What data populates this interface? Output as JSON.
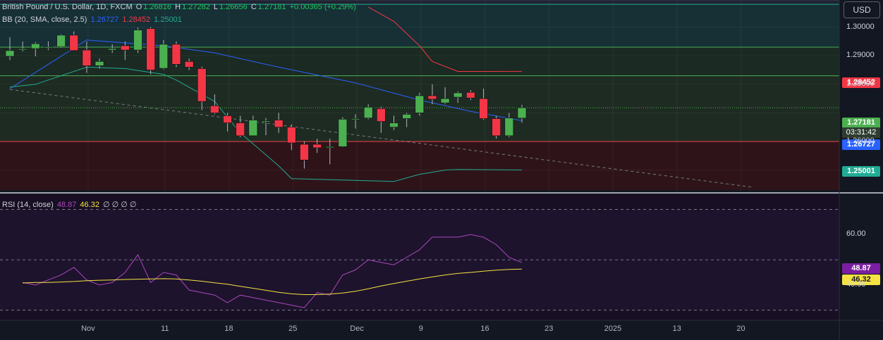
{
  "header": {
    "symbol": "British Pound / U.S. Dollar, 1D, FXCM",
    "o_label": "O",
    "o": "1.26816",
    "h_label": "H",
    "h": "1.27282",
    "l_label": "L",
    "l": "1.26656",
    "c_label": "C",
    "c": "1.27181",
    "change": "+0.00365 (+0.29%)"
  },
  "bb_legend": {
    "label": "BB (20, SMA, close, 2.5)",
    "basis": "1.26727",
    "upper": "1.28452",
    "lower": "1.25001"
  },
  "rsi_legend": {
    "label": "RSI (14, close)",
    "rsi": "48.87",
    "ma": "46.32",
    "extra": "∅ ∅ ∅ ∅"
  },
  "currency_button": "USD",
  "price_tags": {
    "upper": "1.28452",
    "last": "1.27181",
    "countdown": "03:31:42",
    "basis": "1.26727",
    "lower": "1.25001",
    "rsi": "48.87",
    "rsi_ma": "46.32"
  },
  "colors": {
    "up": "#4caf50",
    "down": "#f23645",
    "basis": "#2962ff",
    "upper": "#f23645",
    "lower": "#22ab94",
    "rsi": "#ab47bc",
    "rsi_ma": "#f5e342"
  },
  "chart_data": [
    {
      "type": "candlestick",
      "title": "British Pound / U.S. Dollar, 1D, FXCM",
      "y_axis": {
        "ticks": [
          "1.30000",
          "1.29000",
          "1.28000",
          "1.26000"
        ],
        "range": [
          1.2425,
          1.3095
        ]
      },
      "x_axis": {
        "ticks": [
          "Nov",
          "11",
          "18",
          "25",
          "Dec",
          "9",
          "16",
          "23",
          "2025",
          "13",
          "20"
        ]
      },
      "candles": [
        {
          "o": 1.2898,
          "h": 1.2965,
          "l": 1.2885,
          "c": 1.2918
        },
        {
          "o": 1.2924,
          "h": 1.295,
          "l": 1.2915,
          "c": 1.2924
        },
        {
          "o": 1.2925,
          "h": 1.2948,
          "l": 1.2898,
          "c": 1.2942
        },
        {
          "o": 1.2928,
          "h": 1.295,
          "l": 1.292,
          "c": 1.293
        },
        {
          "o": 1.2932,
          "h": 1.2975,
          "l": 1.2928,
          "c": 1.2972
        },
        {
          "o": 1.2972,
          "h": 1.2985,
          "l": 1.2922,
          "c": 1.2918
        },
        {
          "o": 1.292,
          "h": 1.295,
          "l": 1.284,
          "c": 1.2865
        },
        {
          "o": 1.2865,
          "h": 1.289,
          "l": 1.2855,
          "c": 1.288
        },
        {
          "o": 1.292,
          "h": 1.294,
          "l": 1.291,
          "c": 1.2925
        },
        {
          "o": 1.2935,
          "h": 1.295,
          "l": 1.2885,
          "c": 1.292
        },
        {
          "o": 1.292,
          "h": 1.2998,
          "l": 1.291,
          "c": 1.299
        },
        {
          "o": 1.2995,
          "h": 1.3,
          "l": 1.2835,
          "c": 1.285
        },
        {
          "o": 1.2856,
          "h": 1.2955,
          "l": 1.2852,
          "c": 1.294
        },
        {
          "o": 1.294,
          "h": 1.295,
          "l": 1.286,
          "c": 1.287
        },
        {
          "o": 1.288,
          "h": 1.289,
          "l": 1.285,
          "c": 1.286
        },
        {
          "o": 1.2855,
          "h": 1.2862,
          "l": 1.271,
          "c": 1.274
        },
        {
          "o": 1.2725,
          "h": 1.2765,
          "l": 1.2695,
          "c": 1.27
        },
        {
          "o": 1.269,
          "h": 1.27,
          "l": 1.2635,
          "c": 1.2665
        },
        {
          "o": 1.2665,
          "h": 1.269,
          "l": 1.2615,
          "c": 1.262
        },
        {
          "o": 1.262,
          "h": 1.269,
          "l": 1.262,
          "c": 1.2675
        },
        {
          "o": 1.267,
          "h": 1.2682,
          "l": 1.2622,
          "c": 1.2672
        },
        {
          "o": 1.2675,
          "h": 1.27,
          "l": 1.263,
          "c": 1.265
        },
        {
          "o": 1.265,
          "h": 1.266,
          "l": 1.257,
          "c": 1.2595
        },
        {
          "o": 1.259,
          "h": 1.26,
          "l": 1.2505,
          "c": 1.2535
        },
        {
          "o": 1.259,
          "h": 1.261,
          "l": 1.256,
          "c": 1.2578
        },
        {
          "o": 1.258,
          "h": 1.261,
          "l": 1.252,
          "c": 1.2582
        },
        {
          "o": 1.2582,
          "h": 1.2685,
          "l": 1.258,
          "c": 1.2678
        },
        {
          "o": 1.2678,
          "h": 1.2695,
          "l": 1.2645,
          "c": 1.268
        },
        {
          "o": 1.2682,
          "h": 1.273,
          "l": 1.2678,
          "c": 1.272
        },
        {
          "o": 1.2715,
          "h": 1.2722,
          "l": 1.263,
          "c": 1.267
        },
        {
          "o": 1.265,
          "h": 1.269,
          "l": 1.264,
          "c": 1.2665
        },
        {
          "o": 1.268,
          "h": 1.27,
          "l": 1.265,
          "c": 1.2695
        },
        {
          "o": 1.27,
          "h": 1.277,
          "l": 1.269,
          "c": 1.276
        },
        {
          "o": 1.276,
          "h": 1.28,
          "l": 1.273,
          "c": 1.2748
        },
        {
          "o": 1.2735,
          "h": 1.279,
          "l": 1.273,
          "c": 1.275
        },
        {
          "o": 1.2755,
          "h": 1.2775,
          "l": 1.2735,
          "c": 1.277
        },
        {
          "o": 1.2772,
          "h": 1.278,
          "l": 1.2745,
          "c": 1.2752
        },
        {
          "o": 1.275,
          "h": 1.2785,
          "l": 1.2675,
          "c": 1.268
        },
        {
          "o": 1.268,
          "h": 1.269,
          "l": 1.261,
          "c": 1.262
        },
        {
          "o": 1.262,
          "h": 1.27,
          "l": 1.2615,
          "c": 1.2682
        },
        {
          "o": 1.26816,
          "h": 1.27282,
          "l": 1.26656,
          "c": 1.27181
        }
      ],
      "bollinger": {
        "basis": [
          [
            0,
            1.2785
          ],
          [
            6,
            1.2955
          ],
          [
            12,
            1.2935
          ],
          [
            16,
            1.291
          ],
          [
            21,
            1.286
          ],
          [
            27,
            1.2805
          ],
          [
            32,
            1.2745
          ],
          [
            36,
            1.2705
          ],
          [
            40,
            1.26727
          ]
        ],
        "upper": [
          [
            28,
            1.307
          ],
          [
            30,
            1.302
          ],
          [
            32,
            1.2935
          ],
          [
            33,
            1.288
          ],
          [
            35,
            1.2845
          ],
          [
            37,
            1.2845
          ],
          [
            40,
            1.28452
          ]
        ],
        "lower": [
          [
            0,
            1.279
          ],
          [
            2,
            1.28
          ],
          [
            6,
            1.286
          ],
          [
            9,
            1.2855
          ],
          [
            12,
            1.2835
          ],
          [
            13,
            1.2815
          ],
          [
            16,
            1.274
          ],
          [
            18,
            1.263
          ],
          [
            21,
            1.2515
          ],
          [
            22,
            1.247
          ],
          [
            30,
            1.246
          ],
          [
            32,
            1.2485
          ],
          [
            34,
            1.25
          ],
          [
            35,
            1.2502
          ],
          [
            40,
            1.25001
          ]
        ]
      },
      "trendline": [
        [
          0,
          1.2782
        ],
        [
          58,
          1.244
        ]
      ],
      "zones": [
        {
          "from": 1.308,
          "to": 1.3095
        },
        {
          "from": 1.293,
          "to": 1.308
        },
        {
          "from": 1.283,
          "to": 1.293
        },
        {
          "from": 1.26,
          "to": 1.283
        },
        {
          "from": 1.243,
          "to": 1.26
        }
      ]
    },
    {
      "type": "line",
      "title": "RSI (14, close)",
      "y_axis": {
        "ticks": [
          "60.00",
          "40.00"
        ],
        "range": [
          26,
          76
        ]
      },
      "series": [
        {
          "name": "RSI",
          "values": [
            41,
            40,
            42,
            44,
            47,
            42,
            40,
            41,
            45,
            52,
            41,
            45,
            44,
            38,
            37,
            36,
            33,
            36,
            35,
            34,
            33,
            32,
            31,
            37,
            36,
            44,
            46,
            50,
            49,
            48,
            51,
            54,
            59,
            59,
            59,
            60,
            59,
            56,
            51,
            48.87
          ]
        },
        {
          "name": "RSI MA",
          "values": [
            40.8,
            41.0,
            41.0,
            41.2,
            41.4,
            41.7,
            41.9,
            42.0,
            42.2,
            42.3,
            42.4,
            42.5,
            42.4,
            42.0,
            41.5,
            40.9,
            40.3,
            39.5,
            38.7,
            37.9,
            37.1,
            36.5,
            36.2,
            36.2,
            36.4,
            36.8,
            37.5,
            38.5,
            39.6,
            40.6,
            41.5,
            42.4,
            43.2,
            44.0,
            44.6,
            45.0,
            45.5,
            45.9,
            46.2,
            46.32
          ]
        }
      ]
    }
  ]
}
